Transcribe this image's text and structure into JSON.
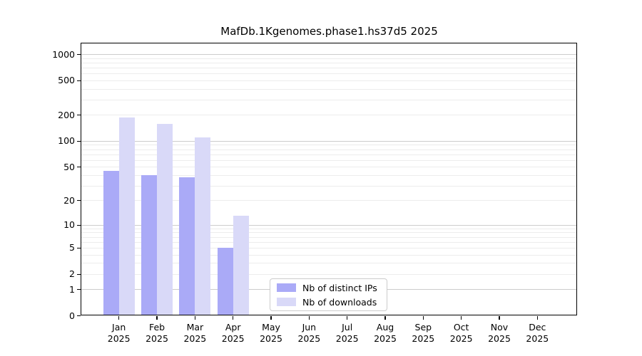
{
  "chart_data": {
    "type": "bar",
    "title": "MafDb.1Kgenomes.phase1.hs37d5 2025",
    "categories": [
      "Jan",
      "Feb",
      "Mar",
      "Apr",
      "May",
      "Jun",
      "Jul",
      "Aug",
      "Sep",
      "Oct",
      "Nov",
      "Dec"
    ],
    "x_year": "2025",
    "series": [
      {
        "name": "Nb of distinct IPs",
        "color": "#aaaaf7",
        "values": [
          45,
          40,
          38,
          5,
          0,
          0,
          0,
          0,
          0,
          0,
          0,
          0
        ]
      },
      {
        "name": "Nb of downloads",
        "color": "#d9d9f8",
        "values": [
          190,
          160,
          110,
          13,
          0,
          0,
          0,
          0,
          0,
          0,
          0,
          0
        ]
      }
    ],
    "yscale": "log10(1+y)",
    "yticks": [
      0,
      1,
      2,
      5,
      10,
      20,
      50,
      100,
      200,
      500,
      1000
    ],
    "major_gridlines": [
      1,
      10,
      100,
      1000
    ],
    "minor_gridlines": [
      2,
      3,
      4,
      5,
      6,
      7,
      8,
      9,
      20,
      30,
      40,
      50,
      60,
      70,
      80,
      90,
      200,
      300,
      400,
      500,
      600,
      700,
      800,
      900
    ],
    "ylim": [
      0,
      1370
    ],
    "xlabel": "",
    "ylabel": "",
    "grid": true,
    "legend_position": "lower center"
  }
}
